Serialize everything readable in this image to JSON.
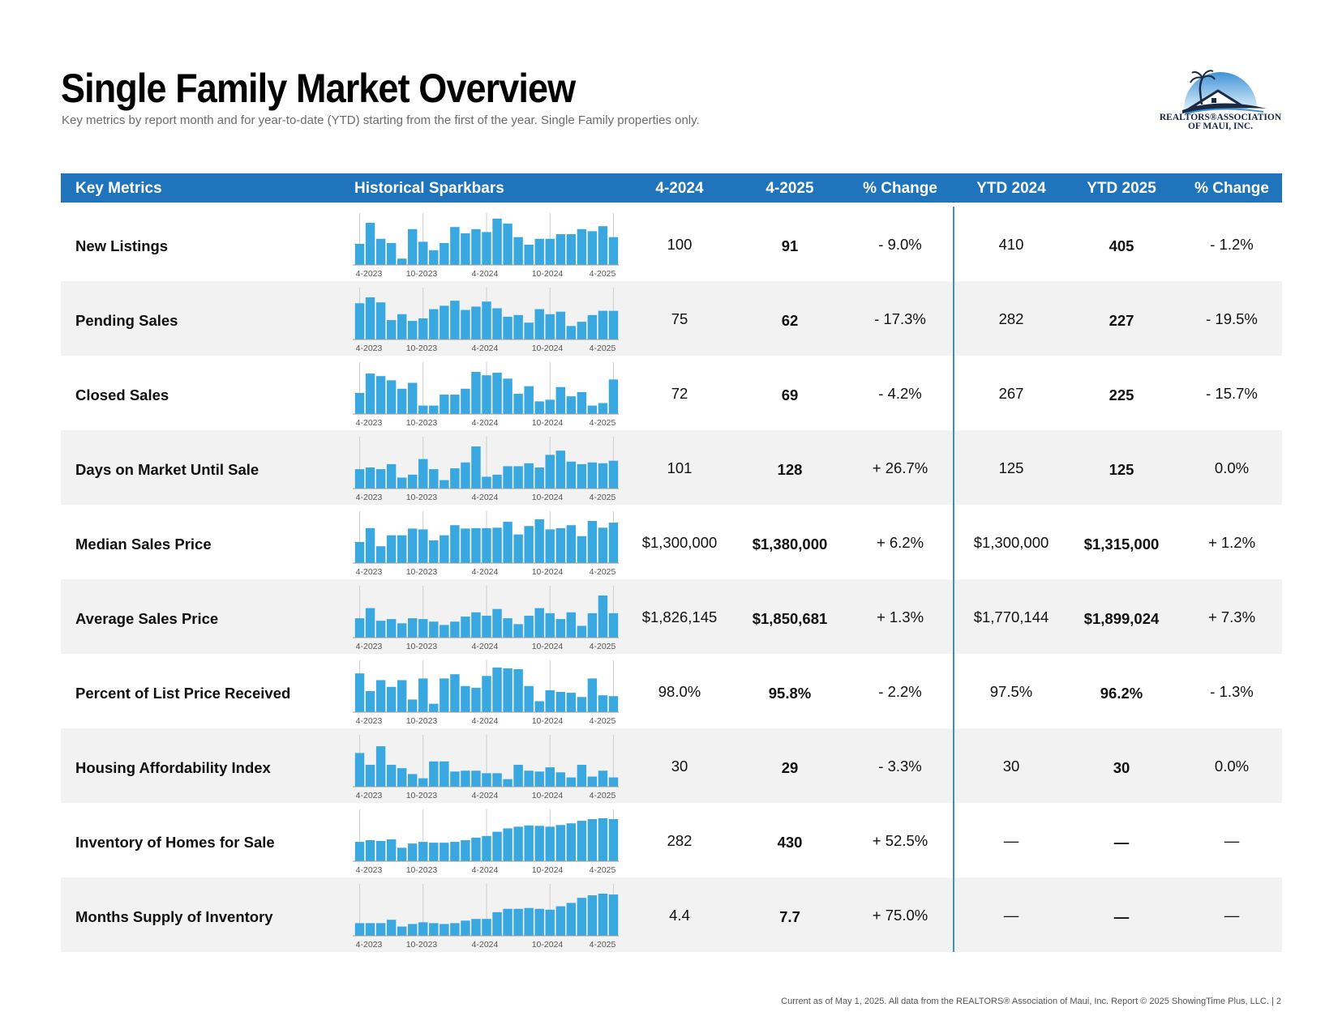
{
  "page": {
    "title": "Single Family Market Overview",
    "subtitle": "Key metrics by report month and for year-to-date (YTD) starting from the first of the year. Single Family properties only.",
    "logo_text_line1": "REALTORS®ASSOCIATION",
    "logo_text_line2": "OF MAUI, INC.",
    "footer": "Current as of May 1, 2025. All data from the REALTORS® Association of Maui, Inc. Report © 2025 ShowingTime Plus, LLC.  |  2"
  },
  "colors": {
    "header_bg": "#1f74bb",
    "bar": "#39a8e0",
    "divider": "#3d8fd0",
    "row_alt": "#f2f2f2"
  },
  "table": {
    "headers": [
      "Key Metrics",
      "Historical Sparkbars",
      "4-2024",
      "4-2025",
      "% Change",
      "YTD 2024",
      "YTD 2025",
      "% Change"
    ],
    "spark_axis_labels": [
      "4-2023",
      "10-2023",
      "4-2024",
      "10-2024",
      "4-2025"
    ],
    "rows": [
      {
        "metric": "New Listings",
        "m2024": "100",
        "m2025": "91",
        "mchg": "- 9.0%",
        "ytd2024": "410",
        "ytd2025": "405",
        "ychg": "- 1.2%",
        "spark": [
          0.5,
          1.0,
          0.62,
          0.52,
          0.15,
          0.85,
          0.55,
          0.35,
          0.52,
          0.9,
          0.75,
          0.85,
          0.78,
          1.1,
          0.98,
          0.66,
          0.48,
          0.62,
          0.62,
          0.73,
          0.73,
          0.85,
          0.8,
          0.92,
          0.66
        ]
      },
      {
        "metric": "Pending Sales",
        "m2024": "75",
        "m2025": "62",
        "mchg": "- 17.3%",
        "ytd2024": "282",
        "ytd2025": "227",
        "ychg": "- 19.5%",
        "spark": [
          0.86,
          1.0,
          0.88,
          0.46,
          0.6,
          0.44,
          0.5,
          0.72,
          0.8,
          0.92,
          0.7,
          0.78,
          0.9,
          0.74,
          0.54,
          0.58,
          0.4,
          0.72,
          0.6,
          0.66,
          0.32,
          0.42,
          0.58,
          0.68,
          0.68
        ]
      },
      {
        "metric": "Closed Sales",
        "m2024": "72",
        "m2025": "69",
        "mchg": "- 4.2%",
        "ytd2024": "267",
        "ytd2025": "225",
        "ychg": "- 15.7%",
        "spark": [
          0.5,
          0.96,
          0.9,
          0.8,
          0.6,
          0.74,
          0.2,
          0.2,
          0.46,
          0.46,
          0.6,
          1.0,
          0.92,
          0.98,
          0.84,
          0.48,
          0.66,
          0.3,
          0.34,
          0.64,
          0.42,
          0.52,
          0.2,
          0.26,
          0.82
        ]
      },
      {
        "metric": "Days on Market Until Sale",
        "m2024": "101",
        "m2025": "128",
        "mchg": "+ 26.7%",
        "ytd2024": "125",
        "ytd2025": "125",
        "ychg": "0.0%",
        "spark": [
          0.46,
          0.5,
          0.46,
          0.58,
          0.26,
          0.33,
          0.7,
          0.46,
          0.2,
          0.48,
          0.62,
          1.0,
          0.28,
          0.33,
          0.53,
          0.53,
          0.6,
          0.5,
          0.8,
          0.9,
          0.64,
          0.58,
          0.62,
          0.6,
          0.66
        ]
      },
      {
        "metric": "Median Sales Price",
        "m2024": "$1,300,000",
        "m2025": "$1,380,000",
        "mchg": "+ 6.2%",
        "ytd2024": "$1,300,000",
        "ytd2025": "$1,315,000",
        "ychg": "+ 1.2%",
        "spark": [
          0.5,
          0.83,
          0.4,
          0.66,
          0.66,
          0.82,
          0.8,
          0.54,
          0.66,
          0.9,
          0.82,
          0.83,
          0.83,
          0.84,
          0.98,
          0.68,
          0.88,
          1.04,
          0.8,
          0.83,
          0.9,
          0.64,
          1.0,
          0.84,
          0.96
        ]
      },
      {
        "metric": "Average Sales Price",
        "m2024": "$1,826,145",
        "m2025": "$1,850,681",
        "mchg": "+ 1.3%",
        "ytd2024": "$1,770,144",
        "ytd2025": "$1,899,024",
        "ychg": "+ 7.3%",
        "spark": [
          0.46,
          0.7,
          0.4,
          0.44,
          0.34,
          0.46,
          0.44,
          0.38,
          0.3,
          0.38,
          0.5,
          0.6,
          0.52,
          0.68,
          0.46,
          0.32,
          0.52,
          0.7,
          0.58,
          0.44,
          0.6,
          0.28,
          0.58,
          1.0,
          0.58
        ]
      },
      {
        "metric": "Percent of List Price Received",
        "m2024": "98.0%",
        "m2025": "95.8%",
        "mchg": "- 2.2%",
        "ytd2024": "97.5%",
        "ytd2025": "96.2%",
        "ychg": "- 1.3%",
        "spark": [
          0.92,
          0.5,
          0.76,
          0.6,
          0.76,
          0.3,
          0.8,
          0.2,
          0.8,
          0.9,
          0.62,
          0.58,
          0.86,
          1.06,
          1.04,
          1.02,
          0.62,
          0.26,
          0.52,
          0.48,
          0.46,
          0.36,
          0.8,
          0.4,
          0.38
        ]
      },
      {
        "metric": "Housing Affordability Index",
        "m2024": "30",
        "m2025": "29",
        "mchg": "- 3.3%",
        "ytd2024": "30",
        "ytd2025": "30",
        "ychg": "0.0%",
        "spark": [
          0.8,
          0.52,
          0.96,
          0.52,
          0.44,
          0.3,
          0.2,
          0.6,
          0.6,
          0.36,
          0.38,
          0.38,
          0.32,
          0.32,
          0.18,
          0.52,
          0.38,
          0.36,
          0.46,
          0.34,
          0.22,
          0.52,
          0.24,
          0.38,
          0.22
        ]
      },
      {
        "metric": "Inventory of Homes for Sale",
        "m2024": "282",
        "m2025": "430",
        "mchg": "+ 52.5%",
        "ytd2024": "—",
        "ytd2025": "—",
        "ychg": "—",
        "spark": [
          0.46,
          0.5,
          0.48,
          0.52,
          0.32,
          0.42,
          0.46,
          0.44,
          0.44,
          0.46,
          0.5,
          0.56,
          0.6,
          0.7,
          0.78,
          0.82,
          0.85,
          0.84,
          0.82,
          0.86,
          0.9,
          0.96,
          1.0,
          1.02,
          1.0
        ]
      },
      {
        "metric": "Months Supply of Inventory",
        "m2024": "4.4",
        "m2025": "7.7",
        "mchg": "+ 75.0%",
        "ytd2024": "—",
        "ytd2025": "—",
        "ychg": "—",
        "spark": [
          0.3,
          0.3,
          0.3,
          0.38,
          0.22,
          0.28,
          0.32,
          0.3,
          0.28,
          0.3,
          0.36,
          0.4,
          0.4,
          0.56,
          0.64,
          0.64,
          0.66,
          0.64,
          0.62,
          0.7,
          0.78,
          0.9,
          0.96,
          1.0,
          0.98
        ]
      }
    ]
  }
}
